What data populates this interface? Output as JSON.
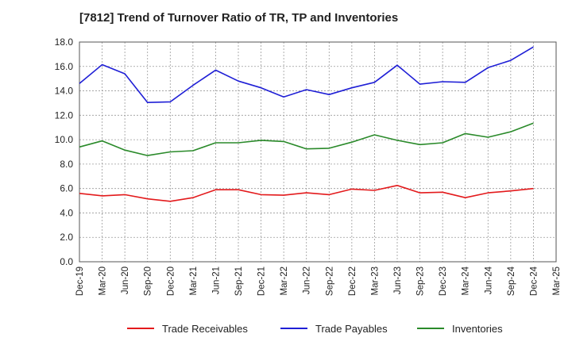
{
  "chart_data": {
    "type": "line",
    "title": "[7812]  Trend of Turnover Ratio of TR, TP and Inventories",
    "xlabel": "",
    "ylabel": "",
    "ylim": [
      0,
      18
    ],
    "yticks": [
      "0.0",
      "2.0",
      "4.0",
      "6.0",
      "8.0",
      "10.0",
      "12.0",
      "14.0",
      "16.0",
      "18.0"
    ],
    "categories": [
      "Dec-19",
      "Mar-20",
      "Jun-20",
      "Sep-20",
      "Dec-20",
      "Mar-21",
      "Jun-21",
      "Sep-21",
      "Dec-21",
      "Mar-22",
      "Jun-22",
      "Sep-22",
      "Dec-22",
      "Mar-23",
      "Jun-23",
      "Sep-23",
      "Dec-23",
      "Mar-24",
      "Jun-24",
      "Sep-24",
      "Dec-24",
      "Mar-25"
    ],
    "grid": true,
    "legend_position": "bottom",
    "series": [
      {
        "name": "Trade Receivables",
        "color": "#e31a1c",
        "values": [
          5.6,
          5.4,
          5.5,
          5.15,
          4.95,
          5.25,
          5.9,
          5.9,
          5.5,
          5.45,
          5.65,
          5.5,
          5.95,
          5.85,
          6.25,
          5.65,
          5.7,
          5.25,
          5.65,
          5.8,
          6.0,
          null
        ]
      },
      {
        "name": "Trade Payables",
        "color": "#1f1fd6",
        "values": [
          14.6,
          16.15,
          15.4,
          13.05,
          13.1,
          14.45,
          15.7,
          14.8,
          14.25,
          13.5,
          14.1,
          13.7,
          14.25,
          14.7,
          16.1,
          14.55,
          14.75,
          14.7,
          15.9,
          16.5,
          17.6,
          null
        ]
      },
      {
        "name": "Inventories",
        "color": "#2a8a2a",
        "values": [
          9.4,
          9.9,
          9.15,
          8.7,
          9.0,
          9.1,
          9.75,
          9.75,
          9.95,
          9.85,
          9.25,
          9.3,
          9.8,
          10.4,
          9.95,
          9.6,
          9.75,
          10.5,
          10.2,
          10.65,
          11.35,
          null
        ]
      }
    ]
  }
}
